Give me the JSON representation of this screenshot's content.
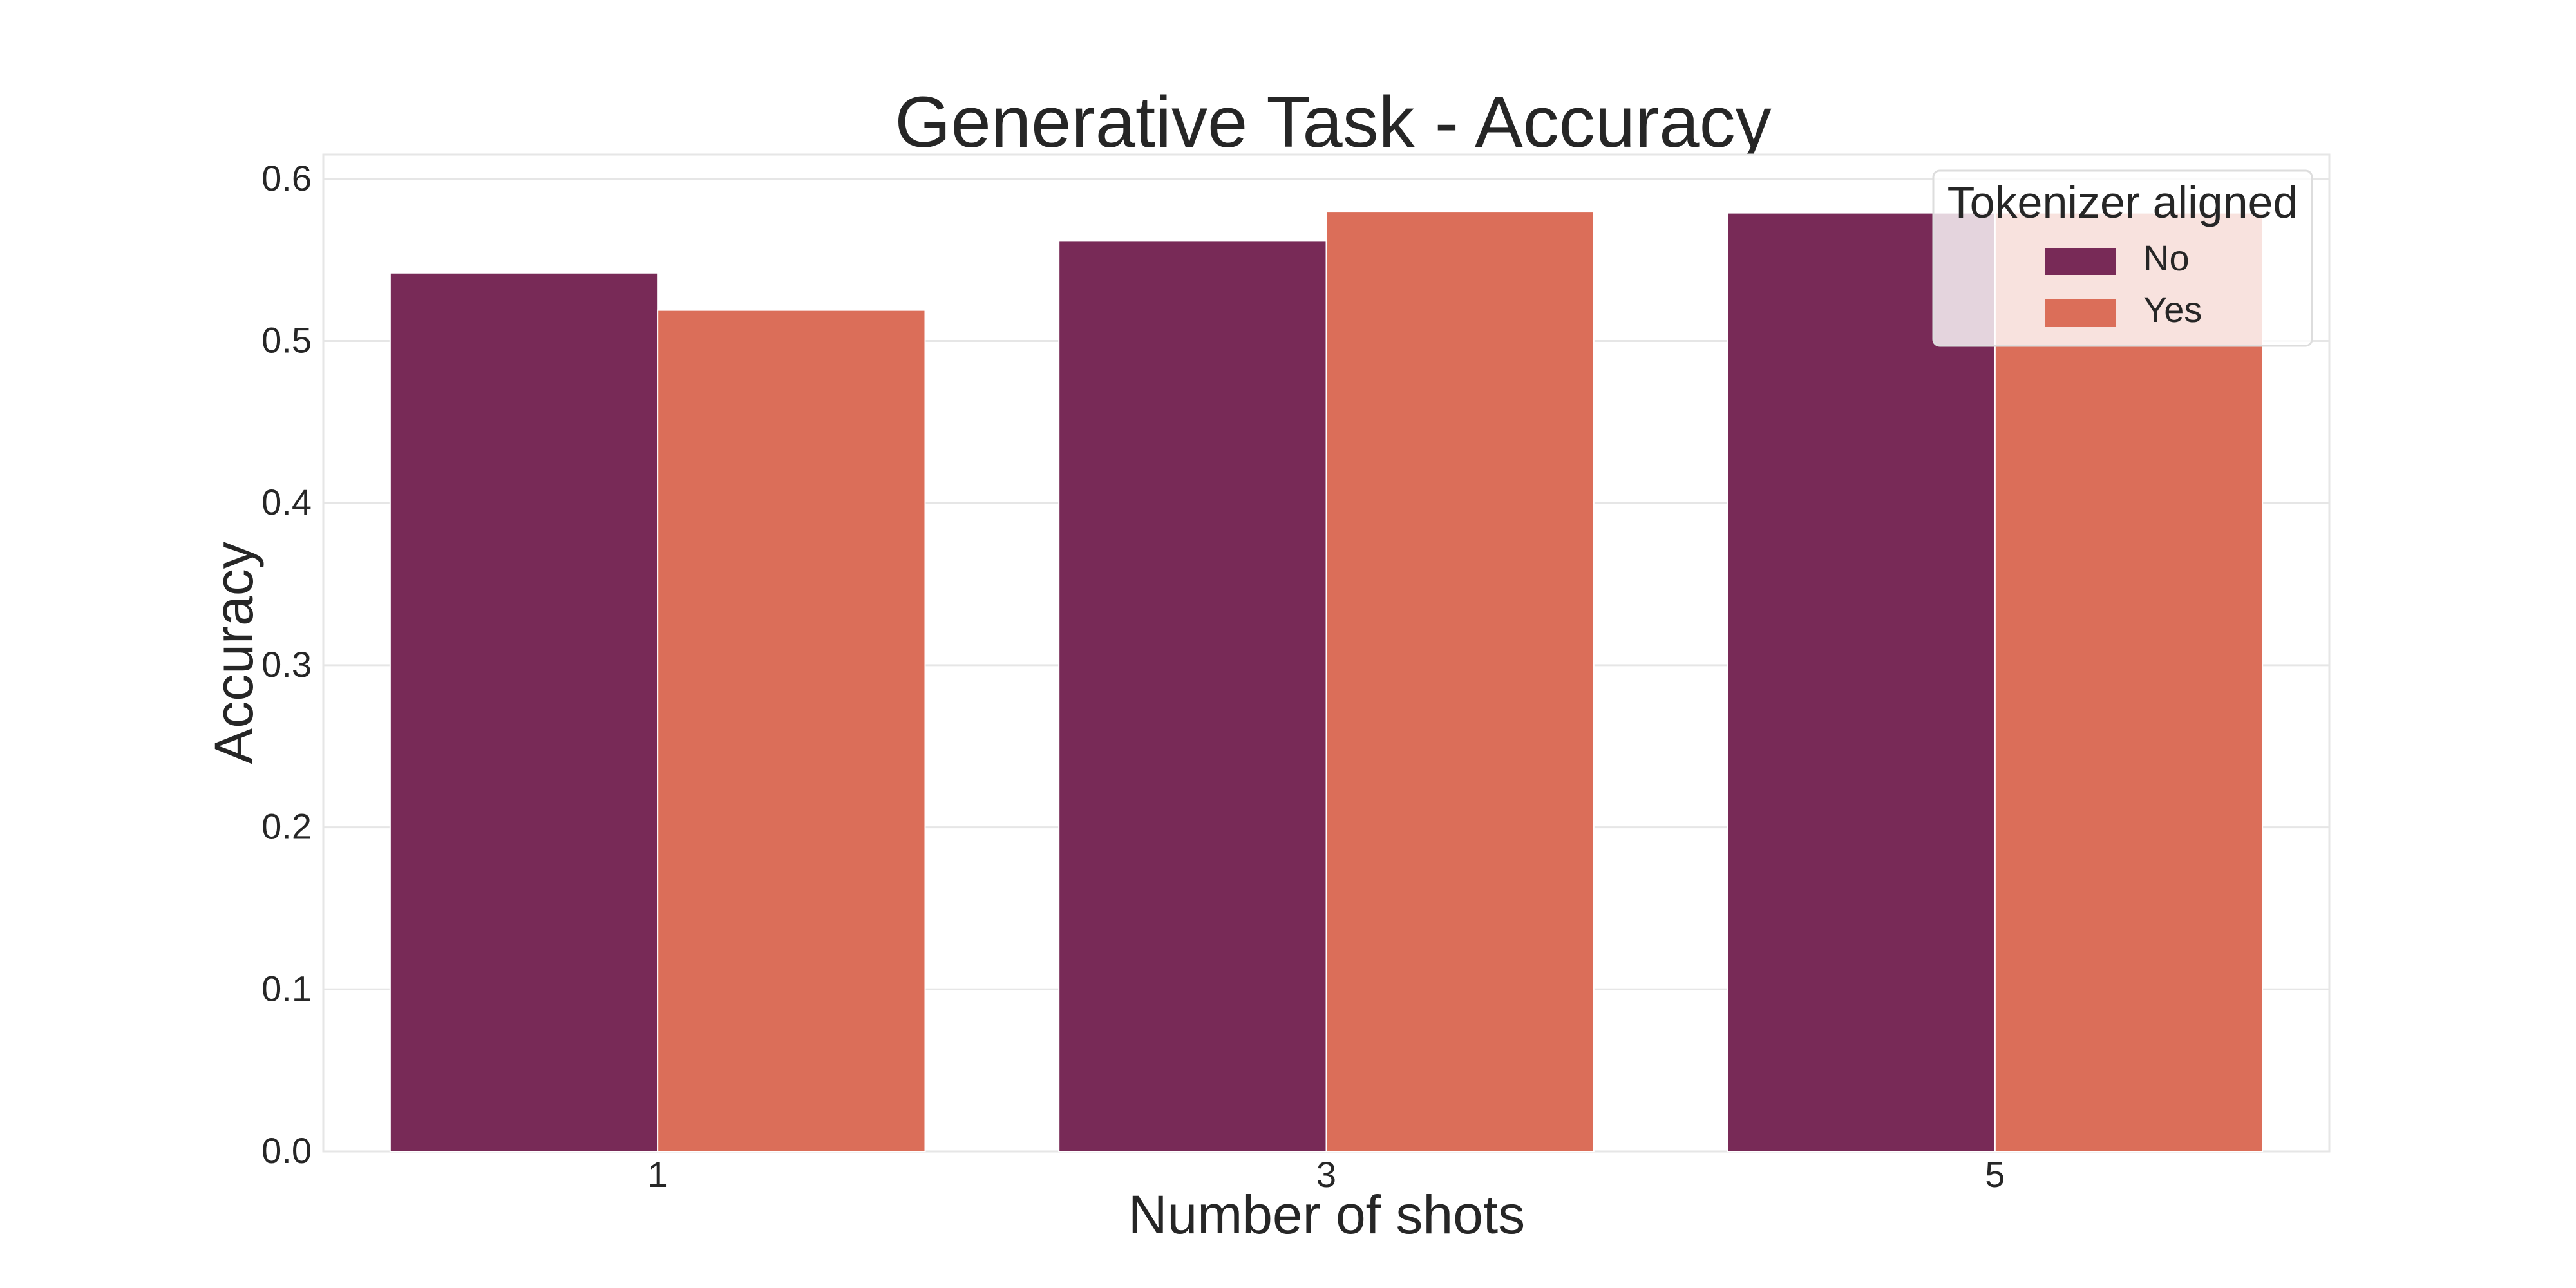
{
  "chart_data": {
    "type": "bar",
    "title": "Generative Task - Accuracy",
    "xlabel": "Number of shots",
    "ylabel": "Accuracy",
    "categories": [
      "1",
      "3",
      "5"
    ],
    "ylim": [
      0,
      0.615
    ],
    "yticks": [
      0.0,
      0.1,
      0.2,
      0.3,
      0.4,
      0.5,
      0.6
    ],
    "ytick_labels": [
      "0.0",
      "0.1",
      "0.2",
      "0.3",
      "0.4",
      "0.5",
      "0.6"
    ],
    "grid": true,
    "legend": {
      "title": "Tokenizer aligned",
      "placement": "top-right"
    },
    "series": [
      {
        "name": "No",
        "color": "#782a57",
        "values": [
          0.542,
          0.562,
          0.579
        ]
      },
      {
        "name": "Yes",
        "color": "#db6e59",
        "values": [
          0.519,
          0.58,
          0.579
        ]
      }
    ]
  }
}
